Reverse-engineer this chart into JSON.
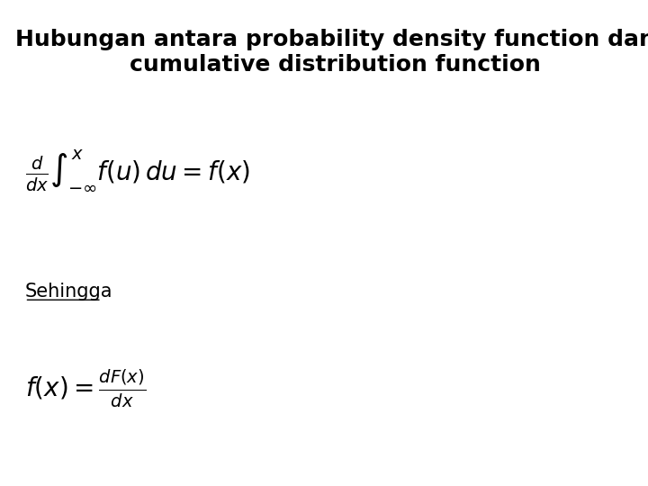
{
  "title_line1": "Hubungan antara probability density function dan",
  "title_line2": "cumulative distribution function",
  "formula1": "$\\frac{d}{dx} \\int_{-\\infty}^{x} f(u)\\, du = f(x)$",
  "label_sehingga": "Sehingga",
  "formula2": "$f(x) = \\frac{dF(x)}{dx}$",
  "bg_color": "#ffffff",
  "title_fontsize": 18,
  "formula_fontsize": 20,
  "label_fontsize": 15,
  "title_color": "#000000",
  "formula_color": "#000000",
  "label_color": "#000000"
}
